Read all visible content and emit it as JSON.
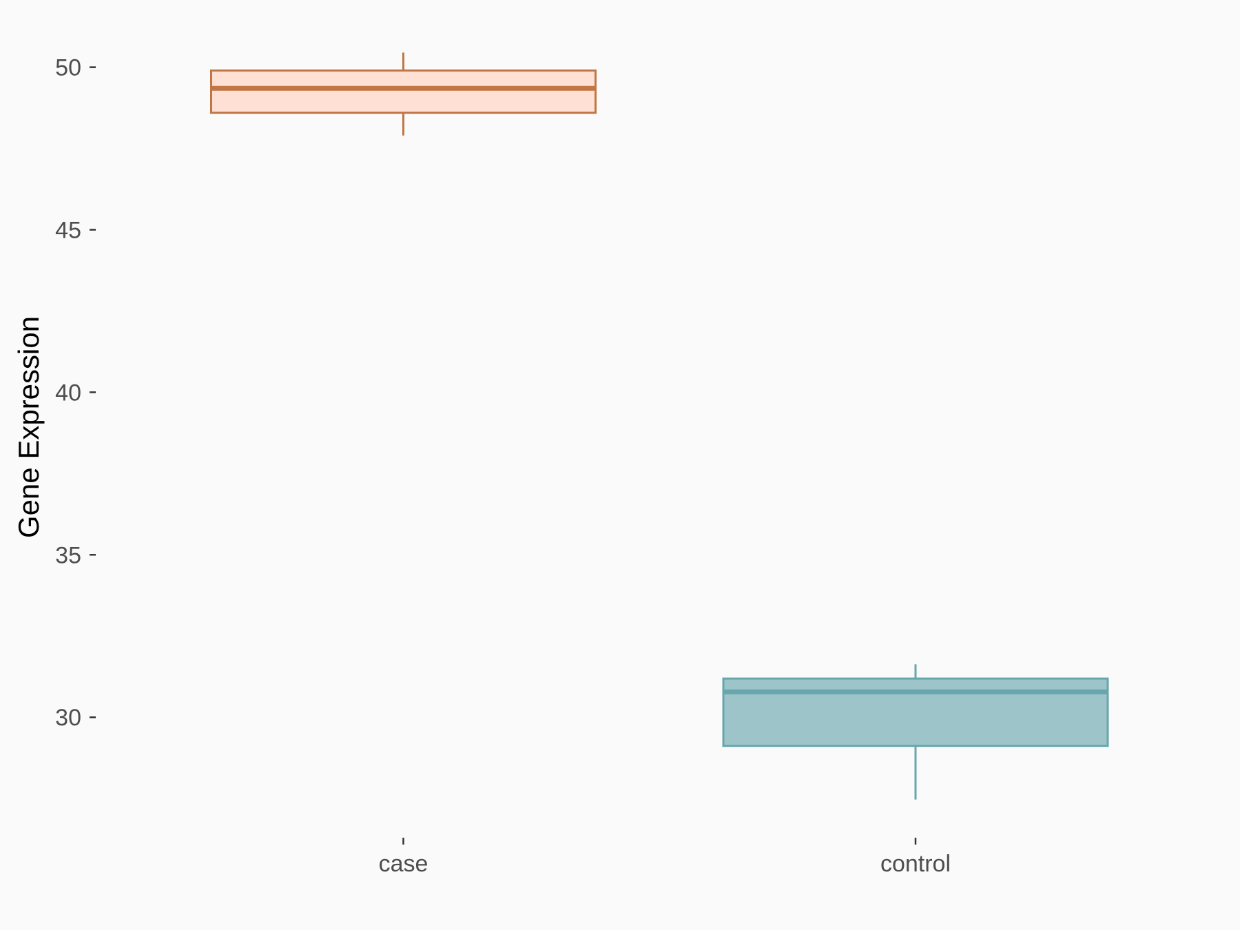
{
  "chart_data": {
    "type": "boxplot",
    "title": "",
    "xlabel": "",
    "ylabel": "Gene Expression",
    "ylim": [
      26.3,
      51.6
    ],
    "yticks": [
      30,
      35,
      40,
      45,
      50
    ],
    "ytick_labels": [
      "30",
      "35",
      "40",
      "45",
      "50"
    ],
    "categories": [
      "case",
      "control"
    ],
    "grid": false,
    "legend": "none",
    "series": [
      {
        "category": "case",
        "whisker_low": 47.9,
        "q1": 48.6,
        "median": 49.35,
        "q3": 49.9,
        "whisker_high": 50.45,
        "fill": "#FFE0D5",
        "stroke": "#C07645"
      },
      {
        "category": "control",
        "whisker_low": 27.47,
        "q1": 29.12,
        "median": 30.78,
        "q3": 31.19,
        "whisker_high": 31.63,
        "fill": "#9DC4C8",
        "stroke": "#68A6AD"
      }
    ],
    "background": "#FAFAFA"
  }
}
